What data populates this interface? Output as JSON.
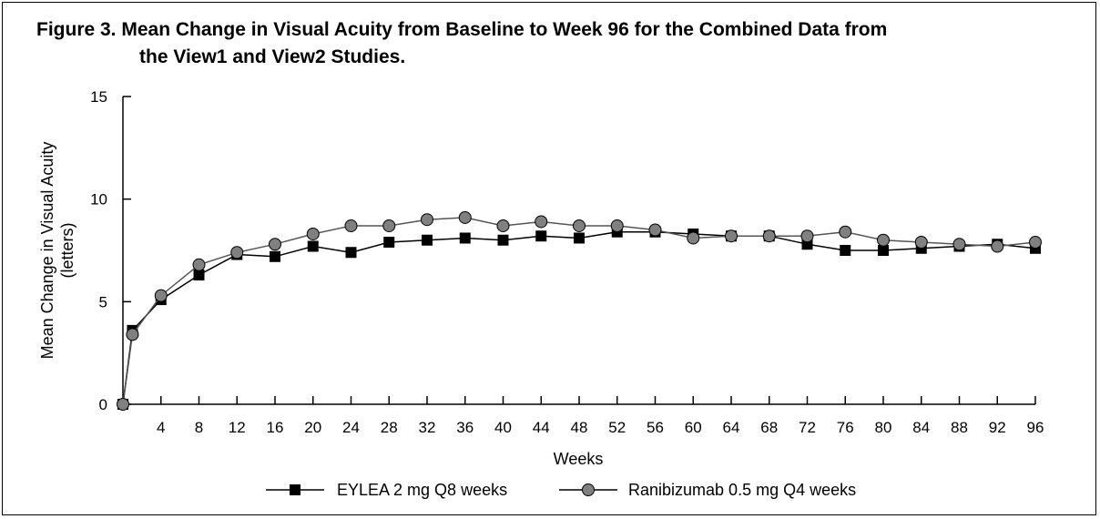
{
  "chart_data": {
    "type": "line",
    "title_line1": "Figure 3. Mean Change in Visual Acuity from Baseline to Week 96 for the Combined Data from",
    "title_line2": "the View1 and View2 Studies.",
    "xlabel": "Weeks",
    "ylabel_line1": "Mean Change in Visual Acuity",
    "ylabel_line2": "(letters)",
    "xlim": [
      0,
      96
    ],
    "ylim": [
      0,
      15
    ],
    "x_ticks": [
      4,
      8,
      12,
      16,
      20,
      24,
      28,
      32,
      36,
      40,
      44,
      48,
      52,
      56,
      60,
      64,
      68,
      72,
      76,
      80,
      84,
      88,
      92,
      96
    ],
    "y_ticks": [
      0,
      5,
      10,
      15
    ],
    "grid": false,
    "legend_position": "bottom",
    "x": [
      0,
      1,
      4,
      8,
      12,
      16,
      20,
      24,
      28,
      32,
      36,
      40,
      44,
      48,
      52,
      56,
      60,
      64,
      68,
      72,
      76,
      80,
      84,
      88,
      92,
      96
    ],
    "series": [
      {
        "name": "EYLEA 2 mg Q8 weeks",
        "marker": "square",
        "color": "#000000",
        "values": [
          0,
          3.6,
          5.1,
          6.3,
          7.3,
          7.2,
          7.7,
          7.4,
          7.9,
          8.0,
          8.1,
          8.0,
          8.2,
          8.1,
          8.4,
          8.4,
          8.3,
          8.2,
          8.2,
          7.8,
          7.5,
          7.5,
          7.6,
          7.7,
          7.8,
          7.6
        ]
      },
      {
        "name": "Ranibizumab 0.5 mg Q4 weeks",
        "marker": "circle",
        "color": "#808080",
        "values": [
          0,
          3.4,
          5.3,
          6.8,
          7.4,
          7.8,
          8.3,
          8.7,
          8.7,
          9.0,
          9.1,
          8.7,
          8.9,
          8.7,
          8.7,
          8.5,
          8.1,
          8.2,
          8.2,
          8.2,
          8.4,
          8.0,
          7.9,
          7.8,
          7.7,
          7.9
        ]
      }
    ]
  }
}
